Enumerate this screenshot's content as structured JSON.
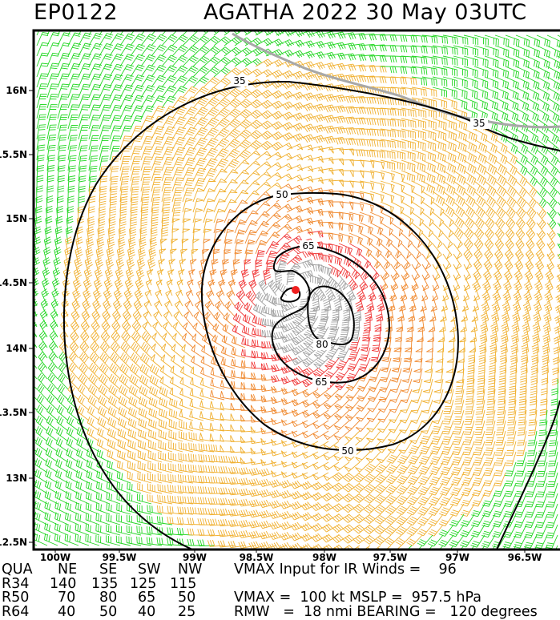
{
  "header": {
    "storm_id": "EP0122",
    "title": "AGATHA 2022 30 May 03UTC"
  },
  "map": {
    "lon_ticks": [
      "100W",
      "99.5W",
      "99W",
      "98.5W",
      "98W",
      "97.5W",
      "97W",
      "96.5W"
    ],
    "lat_ticks": [
      "16N",
      "15.5N",
      "15N",
      "14.5N",
      "14N",
      "13.5N",
      "13N",
      "12.5N"
    ],
    "contour_labels": {
      "c35a": "35",
      "c35b": "35",
      "c50a": "50",
      "c50b": "50",
      "c65a": "65",
      "c65b": "65",
      "c80": "80"
    },
    "contour_levels_kt": [
      35,
      50,
      65,
      80
    ],
    "barb_colors": {
      "below_34": "#22d622",
      "34_to_50": "#f0b030",
      "50_to_64": "#f08a30",
      "above_64": "#f03a3a",
      "above_80": "#a0a0a0"
    },
    "coastline_color": "#a8a8a8",
    "center_marker_color": "#f02020"
  },
  "table": {
    "header": [
      "QUA",
      "NE",
      "SE",
      "SW",
      "NW"
    ],
    "rows": [
      {
        "label": "R34",
        "ne": "140",
        "se": "135",
        "sw": "125",
        "nw": "115"
      },
      {
        "label": "R50",
        "ne": "70",
        "se": "80",
        "sw": "65",
        "nw": "50"
      },
      {
        "label": "R64",
        "ne": "40",
        "se": "50",
        "sw": "40",
        "nw": "25"
      }
    ],
    "vmax_ir_text": "VMAX Input for IR Winds =    96",
    "vmax_text": "VMAX =  100 kt MSLP =  957.5 hPa",
    "rmw_text": "RMW   =  18 nmi BEARING =   120 degrees"
  }
}
